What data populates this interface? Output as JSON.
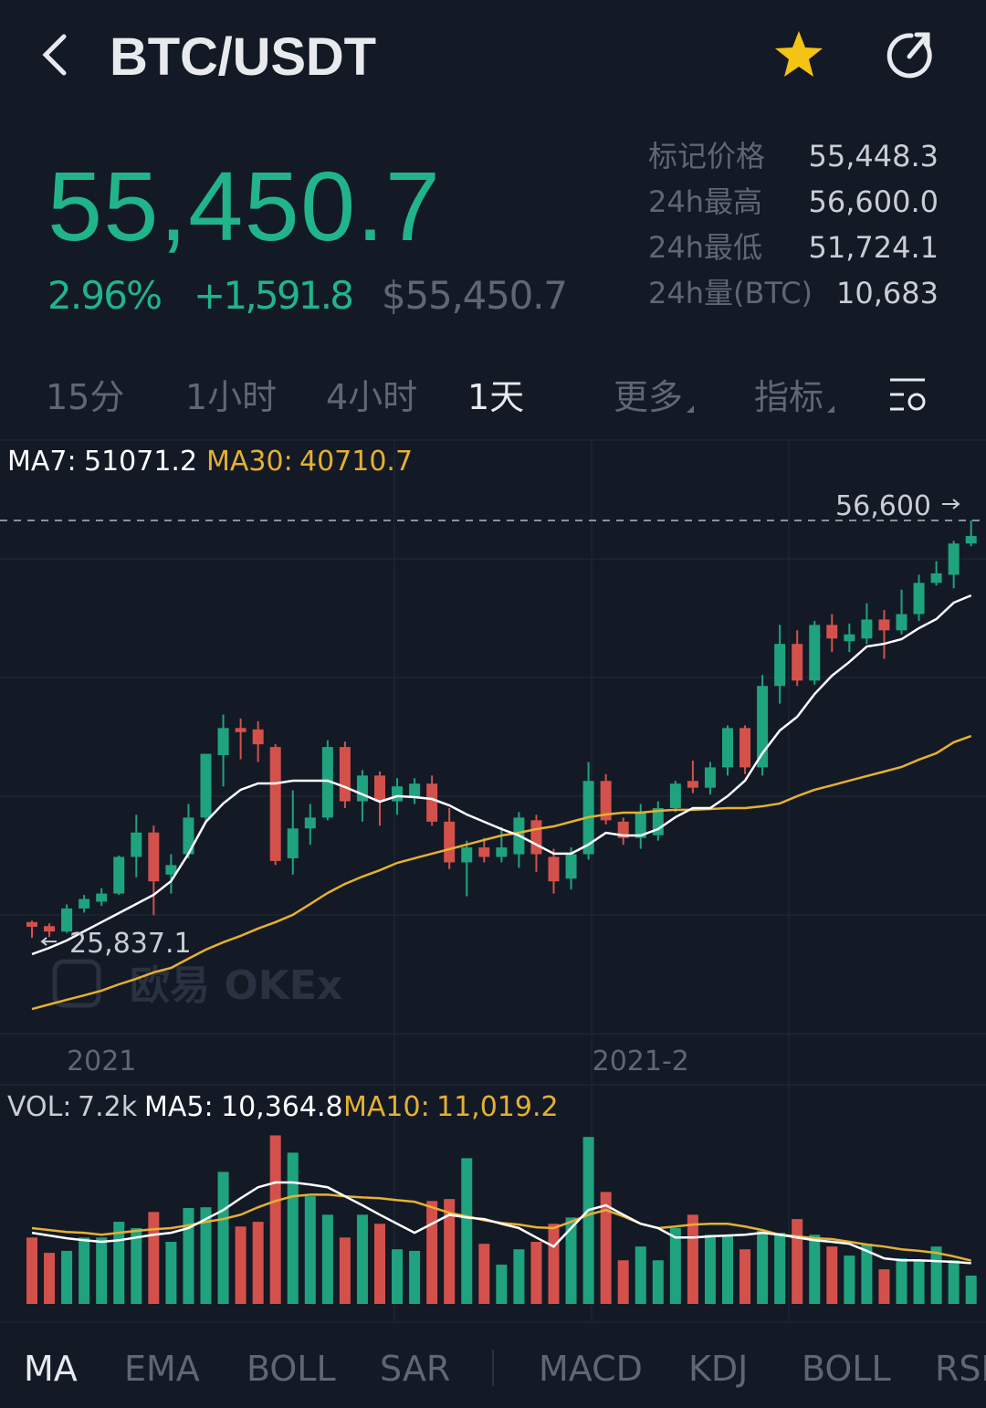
{
  "header": {
    "title": "BTC/USDT"
  },
  "ticker": {
    "last": "55,450.7",
    "change_pct": "2.96%",
    "change": "+1,591.8",
    "usd": "$55,450.7"
  },
  "stats": [
    [
      "标记价格",
      "55,448.3"
    ],
    [
      "24h最高",
      "56,600.0"
    ],
    [
      "24h最低",
      "51,724.1"
    ],
    [
      "24h量(BTC)",
      "10,683"
    ]
  ],
  "intervals": {
    "items": [
      "15分",
      "1小时",
      "4小时",
      "1天",
      "更多",
      "指标"
    ],
    "active": 3
  },
  "chart": {
    "type": "candlestick",
    "watermark": "欧易 OKEx",
    "ylim": [
      18910,
      62320
    ],
    "colors": {
      "up": "#1fa37f",
      "down": "#d4514b",
      "ma7": "#ffffff",
      "ma30": "#e6b030"
    },
    "open": [
      27000,
      26700,
      26300,
      28000,
      28500,
      29100,
      31800,
      33600,
      30500,
      32000,
      34700,
      39300,
      41300,
      41200,
      39900,
      31700,
      33900,
      34700,
      39900,
      35900,
      37800,
      35900,
      36200,
      37200,
      34400,
      31400,
      32500,
      31800,
      32000,
      34500,
      31800,
      30200,
      32000,
      37400,
      34400,
      33200,
      33400,
      35400,
      37400,
      36900,
      38400,
      41300,
      38400,
      44400,
      47500,
      44800,
      48900,
      47700,
      47900,
      49300,
      48500,
      49700,
      52000,
      52600,
      54900
    ],
    "high": [
      27100,
      26900,
      28300,
      29000,
      29500,
      31900,
      34900,
      34100,
      32000,
      35700,
      39400,
      42300,
      42000,
      41800,
      40100,
      36700,
      35700,
      40400,
      40300,
      38200,
      38100,
      37600,
      37600,
      37800,
      35400,
      33000,
      33200,
      34000,
      35100,
      34900,
      32400,
      32500,
      38800,
      37900,
      34700,
      35700,
      35900,
      37400,
      38900,
      38800,
      41500,
      41500,
      45200,
      48900,
      48500,
      49200,
      49700,
      49000,
      50500,
      50000,
      51500,
      52600,
      53600,
      55100,
      56600
    ],
    "low": [
      25837.1,
      25900,
      26200,
      27700,
      28200,
      29000,
      30300,
      27500,
      29100,
      31700,
      34500,
      37000,
      39000,
      38800,
      31200,
      30500,
      32700,
      34500,
      35400,
      34400,
      34100,
      34900,
      35700,
      34100,
      30900,
      28900,
      31400,
      31400,
      31000,
      30700,
      29100,
      29400,
      31600,
      34200,
      32700,
      32400,
      33000,
      35100,
      36500,
      36400,
      37800,
      37900,
      37800,
      43100,
      44400,
      44500,
      46900,
      46900,
      47500,
      46400,
      48200,
      49200,
      51800,
      51600,
      54700
    ],
    "close": [
      26650,
      26300,
      28000,
      28700,
      29100,
      31800,
      33600,
      30000,
      31200,
      34700,
      39400,
      41300,
      41000,
      40100,
      31500,
      33900,
      34700,
      39900,
      35900,
      37800,
      35900,
      37000,
      37200,
      34400,
      31400,
      32500,
      31800,
      32500,
      34700,
      32000,
      30000,
      32000,
      37400,
      34500,
      33200,
      35100,
      35400,
      37200,
      36900,
      38400,
      41300,
      38400,
      44400,
      47500,
      44800,
      48900,
      47900,
      48200,
      49300,
      48500,
      49700,
      52000,
      52700,
      54900,
      55450.7
    ],
    "ma7": {
      "name": "MA7:",
      "last_label": "51071.2",
      "values": [
        24630,
        25100,
        25640,
        26320,
        26990,
        27660,
        28330,
        29010,
        30020,
        32040,
        34390,
        35740,
        36750,
        37220,
        37220,
        37420,
        37420,
        37420,
        36950,
        36410,
        35870,
        36280,
        36210,
        36070,
        35600,
        34930,
        34390,
        33850,
        33380,
        32710,
        32040,
        32040,
        32710,
        33580,
        33380,
        33380,
        33850,
        34730,
        35400,
        35400,
        36280,
        37420,
        39440,
        41120,
        42130,
        43810,
        45160,
        46170,
        47310,
        47510,
        47850,
        48660,
        49330,
        50540,
        51071.2
      ]
    },
    "ma30": {
      "name": "MA30:",
      "last_label": "40710.7",
      "values": [
        20590,
        20930,
        21270,
        21600,
        21940,
        22410,
        22820,
        23290,
        23620,
        24300,
        24970,
        25510,
        25980,
        26520,
        26990,
        27530,
        28330,
        29140,
        29810,
        30350,
        30820,
        31360,
        31700,
        32040,
        32370,
        32710,
        33050,
        33380,
        33580,
        33850,
        34050,
        34390,
        34730,
        34930,
        35060,
        35060,
        35200,
        35270,
        35270,
        35330,
        35400,
        35400,
        35530,
        35740,
        36280,
        36750,
        37080,
        37420,
        37760,
        38090,
        38430,
        38970,
        39440,
        40250,
        40710.7
      ]
    },
    "high_marker": {
      "value": 56600,
      "label": "56,600"
    },
    "low_marker": {
      "value": 25837.1,
      "label": "25,837.1"
    },
    "x_labels": [
      {
        "label": "2021",
        "at": 4
      },
      {
        "label": "2021-2",
        "at": 35
      }
    ]
  },
  "volume": {
    "type": "bar",
    "ylim": [
      0,
      43000
    ],
    "bars": {
      "name": "VOL:",
      "last_label": "7.2k",
      "values": [
        16900,
        13000,
        13500,
        16900,
        16900,
        20900,
        19300,
        23400,
        15800,
        24400,
        24600,
        33600,
        19700,
        20900,
        42900,
        38500,
        27400,
        22700,
        16900,
        22700,
        20400,
        13900,
        13500,
        26200,
        26700,
        37100,
        15300,
        10000,
        13900,
        15800,
        20400,
        22000,
        42500,
        28500,
        11100,
        14600,
        11100,
        19300,
        22700,
        17600,
        17600,
        13900,
        18600,
        18100,
        21600,
        17600,
        14600,
        12300,
        15300,
        8800,
        11600,
        11100,
        14600,
        11100,
        7200
      ]
    },
    "ma5": {
      "name": "MA5:",
      "last_label": "10,364.8",
      "color": "#ffffff",
      "values": [
        18100,
        17400,
        16700,
        16200,
        15800,
        16200,
        16900,
        17600,
        18100,
        19300,
        21600,
        23900,
        26900,
        29700,
        30900,
        30900,
        30400,
        29700,
        27400,
        25100,
        22700,
        20400,
        18100,
        20400,
        22700,
        22000,
        21600,
        20400,
        19300,
        16900,
        14600,
        19300,
        23900,
        25100,
        22700,
        20400,
        19300,
        16900,
        16900,
        17200,
        17400,
        17600,
        18100,
        17600,
        16900,
        16200,
        15800,
        15300,
        13500,
        11600,
        11100,
        11100,
        10900,
        10700,
        10364.8
      ]
    },
    "ma10": {
      "name": "MA10:",
      "last_label": "11,019.2",
      "color": "#e6b030",
      "values": [
        19300,
        18800,
        18300,
        18100,
        17600,
        18100,
        18600,
        19000,
        19300,
        20000,
        20900,
        21600,
        22700,
        24600,
        26200,
        27400,
        27800,
        27800,
        27400,
        27100,
        26900,
        26400,
        26000,
        24600,
        23200,
        22300,
        21300,
        20600,
        20200,
        19500,
        19300,
        20900,
        22700,
        23900,
        22300,
        20400,
        19300,
        19700,
        20200,
        20400,
        20400,
        19700,
        18800,
        17600,
        17200,
        16700,
        16500,
        15800,
        15100,
        14600,
        13900,
        13500,
        13000,
        12100,
        11019.2
      ]
    }
  },
  "indicator_tabs": {
    "items": [
      "MA",
      "EMA",
      "BOLL",
      "SAR",
      "MACD",
      "KDJ",
      "BOLL",
      "RSI"
    ],
    "active": 0
  }
}
